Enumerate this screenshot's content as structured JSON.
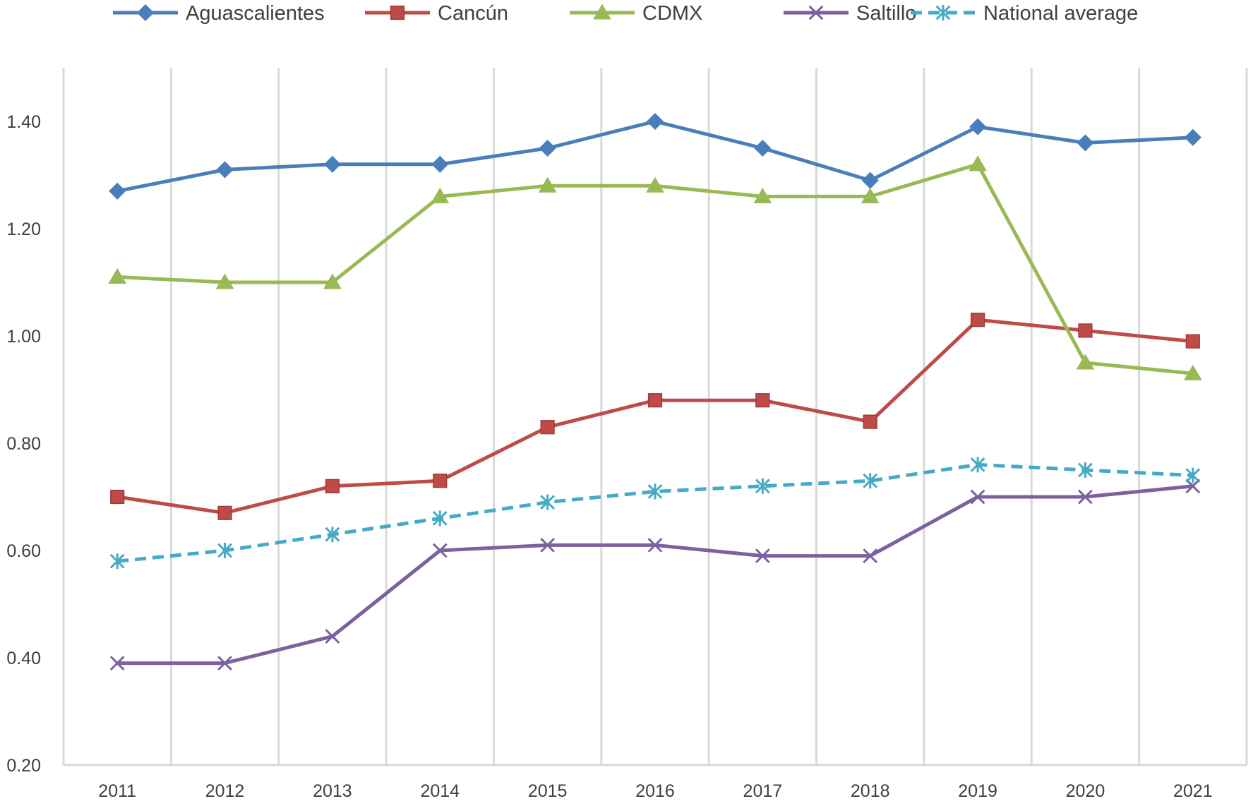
{
  "chart_data": {
    "type": "line",
    "title": "",
    "xlabel": "",
    "ylabel": "",
    "ylim": [
      0.2,
      1.5
    ],
    "yticks": [
      "0.20",
      "0.40",
      "0.60",
      "0.80",
      "1.00",
      "1.20",
      "1.40"
    ],
    "categories": [
      "2011",
      "2012",
      "2013",
      "2014",
      "2015",
      "2016",
      "2017",
      "2018",
      "2019",
      "2020",
      "2021"
    ],
    "legend_position": "top",
    "grid": "vertical",
    "series": [
      {
        "name": "Aguascalientes",
        "color": "#4a7ebb",
        "marker": "diamond",
        "dashed": false,
        "values": [
          1.27,
          1.31,
          1.32,
          1.32,
          1.35,
          1.4,
          1.35,
          1.29,
          1.39,
          1.36,
          1.37
        ]
      },
      {
        "name": "Cancún",
        "color": "#be4b48",
        "marker": "square",
        "dashed": false,
        "values": [
          0.7,
          0.67,
          0.72,
          0.73,
          0.83,
          0.88,
          0.88,
          0.84,
          1.03,
          1.01,
          0.99
        ]
      },
      {
        "name": "CDMX",
        "color": "#98b954",
        "marker": "triangle",
        "dashed": false,
        "values": [
          1.11,
          1.1,
          1.1,
          1.26,
          1.28,
          1.28,
          1.26,
          1.26,
          1.32,
          0.95,
          0.93
        ]
      },
      {
        "name": "Saltillo",
        "color": "#7d60a0",
        "marker": "x",
        "dashed": false,
        "values": [
          0.39,
          0.39,
          0.44,
          0.6,
          0.61,
          0.61,
          0.59,
          0.59,
          0.7,
          0.7,
          0.72
        ]
      },
      {
        "name": "National average",
        "color": "#46aac5",
        "marker": "star",
        "dashed": true,
        "values": [
          0.58,
          0.6,
          0.63,
          0.66,
          0.69,
          0.71,
          0.72,
          0.73,
          0.76,
          0.75,
          0.74
        ]
      }
    ]
  }
}
